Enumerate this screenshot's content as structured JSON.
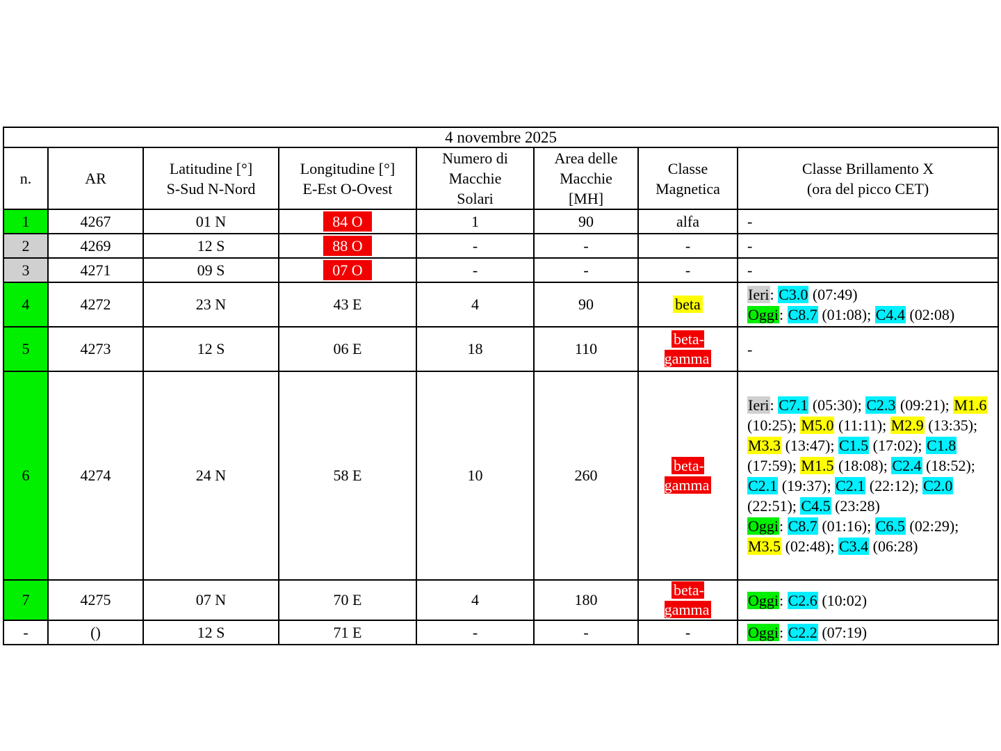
{
  "title": "4 novembre 2025",
  "colors": {
    "green": "#00f000",
    "gray": "#d0d0d0",
    "red": "#f20000",
    "yellow": "#ffff00",
    "cyan": "#00f0ff"
  },
  "table": {
    "headers": [
      {
        "id": "n",
        "label": "n."
      },
      {
        "id": "ar",
        "label": "AR"
      },
      {
        "id": "lat",
        "label": "Latitudine [°]\nS-Sud N-Nord"
      },
      {
        "id": "lon",
        "label": "Longitudine [°]\nE-Est O-Ovest"
      },
      {
        "id": "num",
        "label": "Numero di\nMacchie\nSolari"
      },
      {
        "id": "area",
        "label": "Area delle\nMacchie\n[MH]"
      },
      {
        "id": "mag",
        "label": "Classe\nMagnetica"
      },
      {
        "id": "flares",
        "label": "Classe Brillamento X\n(ora del picco CET)"
      }
    ],
    "rows": [
      {
        "n": "1",
        "n_hl": "green",
        "ar": "4267",
        "lat": "01 N",
        "lon": "84 O",
        "lon_hl": "red",
        "num": "1",
        "area": "90",
        "mag": "alfa",
        "mag_hl": null,
        "flares": "-"
      },
      {
        "n": "2",
        "n_hl": "gray",
        "ar": "4269",
        "lat": "12 S",
        "lon": "88 O",
        "lon_hl": "red",
        "num": "-",
        "area": "-",
        "mag": "-",
        "mag_hl": null,
        "flares": "-"
      },
      {
        "n": "3",
        "n_hl": "gray",
        "ar": "4271",
        "lat": "09 S",
        "lon": "07 O",
        "lon_hl": "red",
        "num": "-",
        "area": "-",
        "mag": "-",
        "mag_hl": null,
        "flares": "-"
      },
      {
        "n": "4",
        "n_hl": "green",
        "ar": "4272",
        "lat": "23 N",
        "lon": "43 E",
        "lon_hl": null,
        "num": "4",
        "area": "90",
        "mag": "beta",
        "mag_hl": "yellow",
        "flares": [
          {
            "day": "Ieri",
            "day_hl": "gray",
            "events": [
              {
                "cls": "C3.0",
                "hl": "cyan",
                "time": "07:49"
              }
            ]
          },
          {
            "day": "Oggi",
            "day_hl": "green",
            "events": [
              {
                "cls": "C8.7",
                "hl": "cyan",
                "time": "01:08"
              },
              {
                "cls": "C4.4",
                "hl": "cyan",
                "time": "02:08"
              }
            ]
          }
        ]
      },
      {
        "n": "5",
        "n_hl": "green",
        "ar": "4273",
        "lat": "12 S",
        "lon": "06 E",
        "lon_hl": null,
        "num": "18",
        "area": "110",
        "mag": "beta-gamma",
        "mag_hl": "red",
        "flares": "-"
      },
      {
        "n": "6",
        "n_hl": "green",
        "ar": "4274",
        "lat": "24 N",
        "lon": "58 E",
        "lon_hl": null,
        "num": "10",
        "area": "260",
        "mag": "beta-gamma",
        "mag_hl": "red",
        "flares": [
          {
            "day": "Ieri",
            "day_hl": "gray",
            "events": [
              {
                "cls": "C7.1",
                "hl": "cyan",
                "time": "05:30"
              },
              {
                "cls": "C2.3",
                "hl": "cyan",
                "time": "09:21"
              },
              {
                "cls": "M1.6",
                "hl": "yellow",
                "time": "10:25"
              },
              {
                "cls": "M5.0",
                "hl": "yellow",
                "time": "11:11"
              },
              {
                "cls": "M2.9",
                "hl": "yellow",
                "time": "13:35"
              },
              {
                "cls": "M3.3",
                "hl": "yellow",
                "time": "13:47"
              },
              {
                "cls": "C1.5",
                "hl": "cyan",
                "time": "17:02"
              },
              {
                "cls": "C1.8",
                "hl": "cyan",
                "time": "17:59"
              },
              {
                "cls": "M1.5",
                "hl": "yellow",
                "time": "18:08"
              },
              {
                "cls": "C2.4",
                "hl": "cyan",
                "time": "18:52"
              },
              {
                "cls": "C2.1",
                "hl": "cyan",
                "time": "19:37"
              },
              {
                "cls": "C2.1",
                "hl": "cyan",
                "time": "22:12"
              },
              {
                "cls": "C2.0",
                "hl": "cyan",
                "time": "22:51"
              },
              {
                "cls": "C4.5",
                "hl": "cyan",
                "time": "23:28"
              }
            ]
          },
          {
            "day": "Oggi",
            "day_hl": "green",
            "events": [
              {
                "cls": "C8.7",
                "hl": "cyan",
                "time": "01:16"
              },
              {
                "cls": "C6.5",
                "hl": "cyan",
                "time": "02:29"
              },
              {
                "cls": "M3.5",
                "hl": "yellow",
                "time": "02:48"
              },
              {
                "cls": "C3.4",
                "hl": "cyan",
                "time": "06:28"
              }
            ]
          }
        ]
      },
      {
        "n": "7",
        "n_hl": "green",
        "ar": "4275",
        "lat": "07 N",
        "lon": "70 E",
        "lon_hl": null,
        "num": "4",
        "area": "180",
        "mag": "beta-gamma",
        "mag_hl": "red",
        "flares": [
          {
            "day": "Oggi",
            "day_hl": "green",
            "events": [
              {
                "cls": "C2.6",
                "hl": "cyan",
                "time": "10:02"
              }
            ]
          }
        ]
      },
      {
        "n": "-",
        "n_hl": null,
        "ar": "()",
        "lat": "12 S",
        "lon": "71 E",
        "lon_hl": null,
        "num": "-",
        "area": "-",
        "mag": "-",
        "mag_hl": null,
        "flares": [
          {
            "day": "Oggi",
            "day_hl": "green",
            "events": [
              {
                "cls": "C2.2",
                "hl": "cyan",
                "time": "07:19"
              }
            ]
          }
        ]
      }
    ]
  }
}
